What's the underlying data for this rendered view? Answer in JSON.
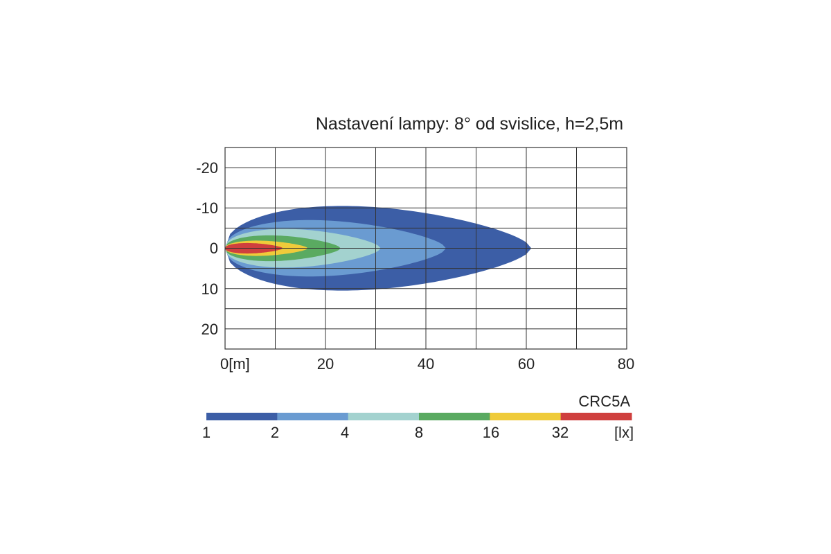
{
  "chart_data": {
    "type": "heatmap",
    "title": "Nastavení lampy: 8° od svislice, h=2,5m",
    "x_ticks": [
      "0[m]",
      "20",
      "40",
      "60",
      "80"
    ],
    "y_ticks": [
      "-20",
      "-10",
      "0",
      "10",
      "20"
    ],
    "xlim": [
      0,
      80
    ],
    "ylim": [
      -25,
      25
    ],
    "grid": true,
    "contours": [
      {
        "min_lux": 1,
        "max_x": 61,
        "half_width": 10.5,
        "color": "#3c5ea6"
      },
      {
        "min_lux": 2,
        "max_x": 44,
        "half_width": 7.0,
        "color": "#6a9bd1"
      },
      {
        "min_lux": 4,
        "max_x": 31,
        "half_width": 4.8,
        "color": "#a3d2cf"
      },
      {
        "min_lux": 8,
        "max_x": 23,
        "half_width": 3.2,
        "color": "#5aaa61"
      },
      {
        "min_lux": 16,
        "max_x": 16.5,
        "half_width": 1.9,
        "color": "#efcb3a"
      },
      {
        "min_lux": 32,
        "max_x": 11.5,
        "half_width": 1.3,
        "color": "#cf3f3e"
      }
    ],
    "legend": {
      "name": "CRC5A",
      "colors": [
        "#3c5ea6",
        "#6a9bd1",
        "#a3d2cf",
        "#5aaa61",
        "#efcb3a",
        "#cf3f3e"
      ],
      "labels": [
        "1",
        "2",
        "4",
        "8",
        "16",
        "32",
        "[lx]"
      ]
    }
  }
}
